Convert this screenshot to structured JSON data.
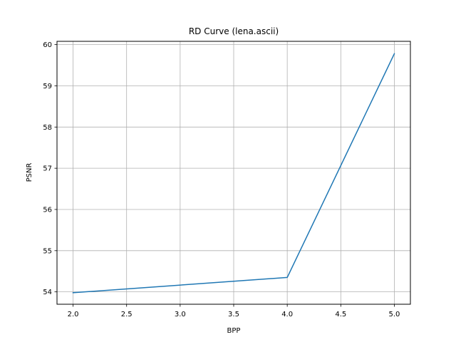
{
  "chart_data": {
    "type": "line",
    "title": "RD Curve (lena.ascii)",
    "xlabel": "BPP",
    "ylabel": "PSNR",
    "xlim": [
      1.85,
      5.15
    ],
    "ylim": [
      53.7,
      60.08
    ],
    "x_ticks": [
      2.0,
      2.5,
      3.0,
      3.5,
      4.0,
      4.5,
      5.0
    ],
    "x_tick_labels": [
      "2.0",
      "2.5",
      "3.0",
      "3.5",
      "4.0",
      "4.5",
      "5.0"
    ],
    "y_ticks": [
      54,
      55,
      56,
      57,
      58,
      59,
      60
    ],
    "y_tick_labels": [
      "54",
      "55",
      "56",
      "57",
      "58",
      "59",
      "60"
    ],
    "grid": true,
    "series": [
      {
        "color": "#1f77b4",
        "x": [
          2.0,
          4.0,
          5.0
        ],
        "y": [
          53.98,
          54.35,
          59.78
        ]
      }
    ]
  }
}
